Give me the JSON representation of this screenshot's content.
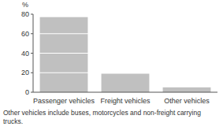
{
  "chart_data": {
    "type": "bar",
    "y_label": "%",
    "categories": [
      "Passenger vehicles",
      "Freight vehicles",
      "Other vehicles"
    ],
    "values": [
      77,
      19,
      5
    ],
    "color": "#c0c0c0",
    "ylim": [
      0,
      80
    ],
    "yticks": [
      0,
      20,
      40,
      60,
      80
    ],
    "grid": true,
    "annotations": [
      "Other vehicles include buses, motorcycles and non-freight carrying trucks."
    ]
  }
}
